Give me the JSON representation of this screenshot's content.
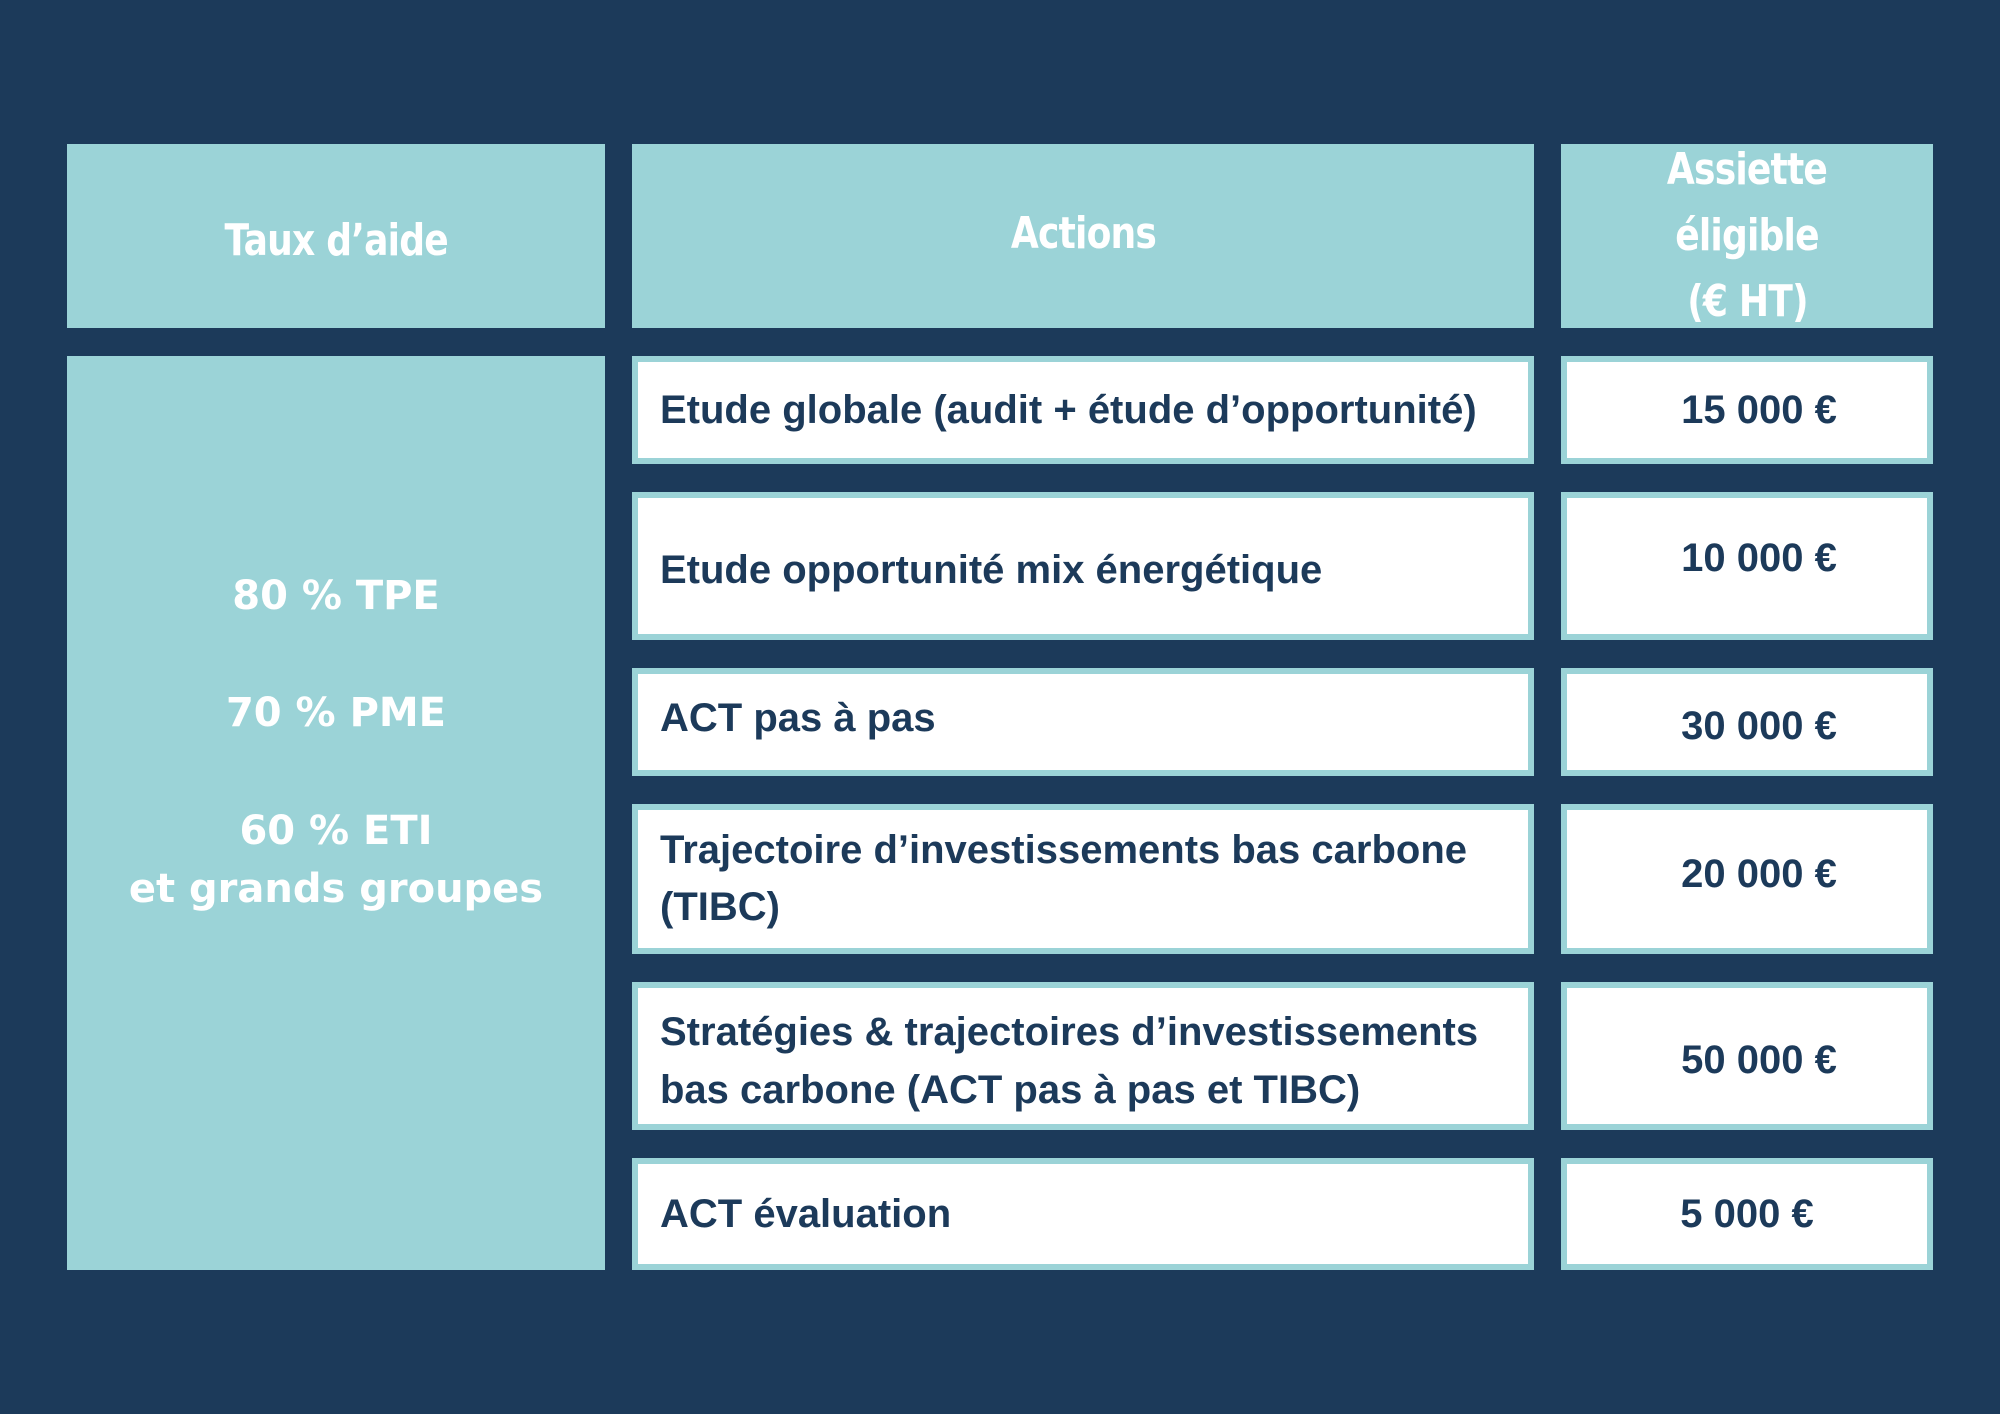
{
  "headers": {
    "rate": "Taux d’aide",
    "actions": "Actions",
    "base_line1": "Assiette éligible",
    "base_line2": "(€ HT)"
  },
  "rates": {
    "tpe": "80 % TPE",
    "pme": "70 % PME",
    "eti_line1": "60 % ETI",
    "eti_line2": "et grands groupes"
  },
  "rows": [
    {
      "action_line1": "Etude globale (audit + étude d’opportunité)",
      "amount": "15 000 €"
    },
    {
      "action_line1": "Etude opportunité mix énergétique",
      "amount": "10 000 €"
    },
    {
      "action_line1": "ACT pas à pas",
      "amount": "30 000 €"
    },
    {
      "action_line1": "Trajectoire d’investissements bas carbone",
      "action_line2": "(TIBC)",
      "amount": "20 000 €"
    },
    {
      "action_line1": "Stratégies & trajectoires d’investissements",
      "action_line2": "bas carbone (ACT pas à pas et TIBC)",
      "amount": "50 000 €"
    },
    {
      "action_line1": "ACT évaluation",
      "amount": "5 000 €"
    }
  ],
  "colors": {
    "background": "#1c3a5a",
    "accent": "#9bd3d7",
    "cell": "#ffffff",
    "text_dark": "#1c3a5a"
  }
}
